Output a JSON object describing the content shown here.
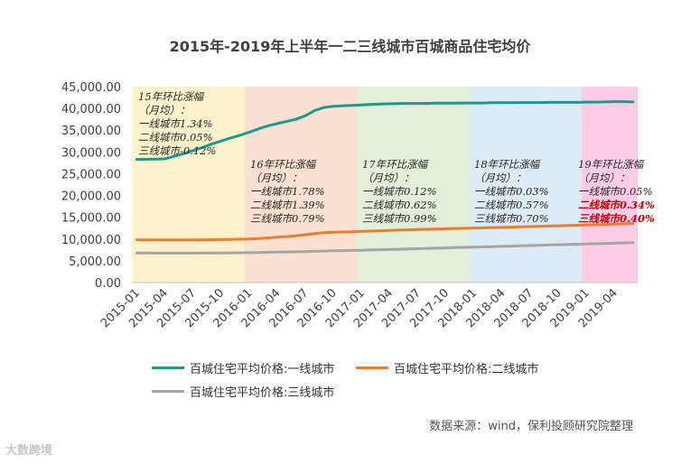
{
  "chart_data": {
    "type": "line",
    "title": "2015年-2019年上半年一二三线城市百城商品住宅均价",
    "x": [
      "2015-01",
      "2015-02",
      "2015-03",
      "2015-04",
      "2015-05",
      "2015-06",
      "2015-07",
      "2015-08",
      "2015-09",
      "2015-10",
      "2015-11",
      "2015-12",
      "2016-01",
      "2016-02",
      "2016-03",
      "2016-04",
      "2016-05",
      "2016-06",
      "2016-07",
      "2016-08",
      "2016-09",
      "2016-10",
      "2016-11",
      "2016-12",
      "2017-01",
      "2017-02",
      "2017-03",
      "2017-04",
      "2017-05",
      "2017-06",
      "2017-07",
      "2017-08",
      "2017-09",
      "2017-10",
      "2017-11",
      "2017-12",
      "2018-01",
      "2018-02",
      "2018-03",
      "2018-04",
      "2018-05",
      "2018-06",
      "2018-07",
      "2018-08",
      "2018-09",
      "2018-10",
      "2018-11",
      "2018-12",
      "2019-01",
      "2019-02",
      "2019-03",
      "2019-04",
      "2019-05",
      "2019-06"
    ],
    "x_tick_labels": [
      "2015-01",
      "2015-04",
      "2015-07",
      "2015-10",
      "2016-01",
      "2016-04",
      "2016-07",
      "2016-10",
      "2017-01",
      "2017-04",
      "2017-07",
      "2017-10",
      "2018-01",
      "2018-04",
      "2018-07",
      "2018-10",
      "2019-01",
      "2019-04"
    ],
    "y_tick_labels": [
      "0.00",
      "5,000.00",
      "10,000.00",
      "15,000.00",
      "20,000.00",
      "25,000.00",
      "30,000.00",
      "35,000.00",
      "40,000.00",
      "45,000.00"
    ],
    "ylim": [
      0,
      45000
    ],
    "series": [
      {
        "name": "百城住宅平均价格:一线城市",
        "color": "#1b9b8f",
        "values": [
          28300,
          28300,
          28350,
          28400,
          29000,
          29600,
          30300,
          31000,
          31800,
          32500,
          33200,
          33800,
          34500,
          35300,
          36000,
          36500,
          37000,
          37500,
          38300,
          39500,
          40200,
          40500,
          40600,
          40700,
          40800,
          40900,
          41000,
          41050,
          41100,
          41150,
          41150,
          41150,
          41200,
          41200,
          41200,
          41250,
          41250,
          41250,
          41300,
          41300,
          41300,
          41350,
          41350,
          41350,
          41400,
          41400,
          41400,
          41400,
          41450,
          41450,
          41500,
          41550,
          41550,
          41500
        ]
      },
      {
        "name": "百城住宅平均价格:二线城市",
        "color": "#ed7d31",
        "values": [
          9800,
          9790,
          9780,
          9780,
          9790,
          9800,
          9810,
          9830,
          9850,
          9870,
          9900,
          9950,
          10000,
          10100,
          10250,
          10400,
          10550,
          10750,
          11000,
          11250,
          11450,
          11550,
          11620,
          11680,
          11750,
          11820,
          11900,
          11980,
          12050,
          12120,
          12180,
          12240,
          12300,
          12360,
          12420,
          12470,
          12520,
          12570,
          12620,
          12680,
          12740,
          12800,
          12860,
          12920,
          12980,
          13040,
          13100,
          13160,
          13220,
          13290,
          13360,
          13430,
          13500,
          13560
        ]
      },
      {
        "name": "百城住宅平均价格:三线城市",
        "color": "#a5a5a5",
        "values": [
          6800,
          6780,
          6770,
          6760,
          6760,
          6760,
          6770,
          6780,
          6790,
          6800,
          6820,
          6840,
          6870,
          6900,
          6940,
          6980,
          7020,
          7070,
          7120,
          7180,
          7240,
          7290,
          7340,
          7380,
          7430,
          7480,
          7540,
          7600,
          7660,
          7720,
          7780,
          7840,
          7900,
          7960,
          8020,
          8080,
          8140,
          8200,
          8260,
          8320,
          8380,
          8440,
          8500,
          8560,
          8620,
          8680,
          8740,
          8800,
          8860,
          8920,
          8980,
          9040,
          9100,
          9160
        ]
      }
    ],
    "bands": [
      {
        "color": "#fff2cc",
        "from": 0,
        "to": 12
      },
      {
        "color": "#fbe1cf",
        "from": 12,
        "to": 24
      },
      {
        "color": "#e2efd9",
        "from": 24,
        "to": 36
      },
      {
        "color": "#ddebf7",
        "from": 36,
        "to": 48
      },
      {
        "color": "#ffcce6",
        "from": 48,
        "to": 54
      }
    ],
    "annotations": [
      {
        "band": 0,
        "lines": [
          "15年环比涨幅",
          "（月均）：",
          "一线城市1.34%",
          "二线城市0.05%",
          "三线城市-0.12%"
        ]
      },
      {
        "band": 1,
        "lines": [
          "16年环比涨幅",
          "（月均）：",
          "一线城市1.78%",
          "二线城市1.39%",
          "三线城市0.79%"
        ]
      },
      {
        "band": 2,
        "lines": [
          "17年环比涨幅",
          "（月均）：",
          "一线城市0.12%",
          "二线城市0.62%",
          "三线城市0.99%"
        ]
      },
      {
        "band": 3,
        "lines": [
          "18年环比涨幅",
          "（月均）：",
          "一线城市0.03%",
          "二线城市0.57%",
          "三线城市0.70%"
        ]
      },
      {
        "band": 4,
        "lines": [
          "19年环比涨幅",
          "（月均）：",
          "一线城市0.05%",
          "二线城市0.34%",
          "三线城市0.40%"
        ],
        "highlight_color": "#c00000"
      }
    ]
  },
  "source": "数据来源：wind，保利投顾研究院整理",
  "watermark": "大数跨境"
}
